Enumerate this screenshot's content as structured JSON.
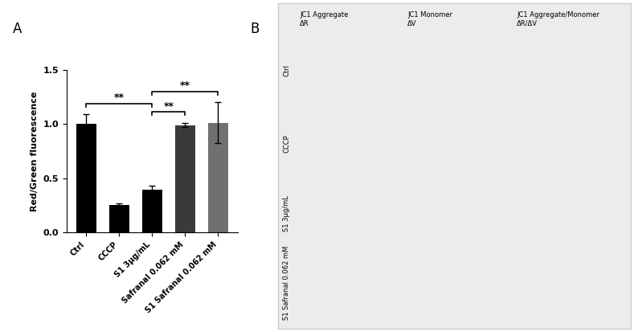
{
  "chart_data": {
    "type": "bar",
    "title": "A",
    "y_label": "Red/Green fluorescence",
    "categories": [
      "Ctrl",
      "CCCP",
      "S1 3μg/mL",
      "Safranal 0.062 mM",
      "S1 Safranal 0.062 mM"
    ],
    "values": [
      1.0,
      0.25,
      0.39,
      0.99,
      1.01
    ],
    "errors": [
      0.09,
      0.02,
      0.04,
      0.02,
      0.19
    ],
    "colors": [
      "#000000",
      "#000000",
      "#000000",
      "#3a3a3a",
      "#707070"
    ],
    "ylim": [
      0,
      1.5
    ],
    "yticks": [
      {
        "value": 0,
        "label": "0.0"
      },
      {
        "value": 0.5,
        "label": "0.5"
      },
      {
        "value": 1.0,
        "label": "1.0"
      },
      {
        "value": 1.5,
        "label": "1.5"
      }
    ],
    "comparisons": [
      {
        "from": "Ctrl",
        "to": "S1 3μg/mL",
        "label": "**"
      },
      {
        "from": "S1 3μg/mL",
        "to": "Safranal 0.062 mM",
        "label": "**"
      },
      {
        "from": "S1 3μg/mL",
        "to": "S1 Safranal 0.062 mM",
        "label": "**"
      }
    ]
  },
  "image_panel": {
    "label": "B",
    "columns": [
      "JC1 Aggregate\nΔR",
      "JC1 Monomer\nΔV",
      "JC1 Aggregate/Monomer\nΔR/ΔV"
    ],
    "rows": [
      "Ctrl",
      "CCCP",
      "S1 3μg/mL",
      "S1 Safranal 0.062 mM"
    ]
  }
}
